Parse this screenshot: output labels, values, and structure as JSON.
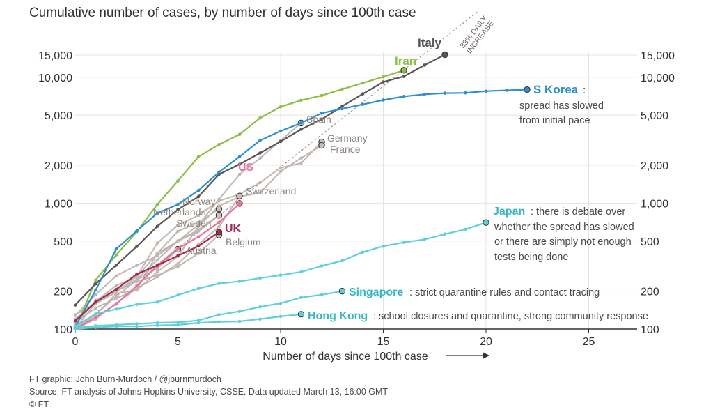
{
  "title": "Cumulative number of cases, by number of days since 100th case",
  "chart_data": {
    "type": "line",
    "xlabel": "Number of days since 100th case",
    "ylabel": "",
    "xlim": [
      0,
      28
    ],
    "ylim": [
      100,
      17000
    ],
    "yscale": "log",
    "xticks": [
      0,
      5,
      10,
      15,
      20,
      25
    ],
    "yticks": [
      100,
      200,
      500,
      1000,
      2000,
      5000,
      10000,
      15000
    ],
    "ytick_labels": [
      "100",
      "200",
      "500",
      "1,000",
      "2,000",
      "5,000",
      "10,000",
      "15,000"
    ],
    "grid": true,
    "reference_line": {
      "label_line1": "33% DAILY",
      "label_line2": "INCREASE",
      "daily_growth": 0.33,
      "start_value": 100
    },
    "series": [
      {
        "name": "Iran",
        "color": "#8cbf3f",
        "x": [
          0,
          1,
          2,
          3,
          4,
          5,
          6,
          7,
          8,
          9,
          10,
          11,
          12,
          13,
          14,
          15,
          16
        ],
        "y": [
          100,
          245,
          388,
          593,
          978,
          1501,
          2336,
          2922,
          3513,
          4747,
          5823,
          6566,
          7161,
          8042,
          9000,
          10075,
          11364
        ]
      },
      {
        "name": "Italy",
        "color": "#5a5552",
        "x": [
          0,
          1,
          2,
          3,
          4,
          5,
          6,
          7,
          8,
          9,
          10,
          11,
          12,
          13,
          14,
          15,
          16,
          17,
          18
        ],
        "y": [
          155,
          229,
          322,
          453,
          655,
          888,
          1128,
          1694,
          2036,
          2502,
          3089,
          3858,
          4636,
          5883,
          7375,
          9172,
          10149,
          12462,
          15113
        ]
      },
      {
        "name": "S Korea",
        "color": "#2e8ed3",
        "x": [
          0,
          1,
          2,
          3,
          4,
          5,
          6,
          7,
          8,
          9,
          10,
          11,
          12,
          13,
          14,
          15,
          16,
          17,
          18,
          19,
          20,
          21,
          22
        ],
        "y": [
          104,
          204,
          433,
          602,
          833,
          977,
          1261,
          1766,
          2337,
          3150,
          3736,
          4335,
          5186,
          5621,
          6088,
          6593,
          7041,
          7314,
          7478,
          7513,
          7755,
          7869,
          7979
        ]
      },
      {
        "name": "Spain",
        "color": "#bfb7b2",
        "x": [
          0,
          1,
          2,
          3,
          4,
          5,
          6,
          7,
          8,
          9,
          10,
          11
        ],
        "y": [
          120,
          165,
          222,
          259,
          400,
          500,
          673,
          1073,
          1695,
          2277,
          3146,
          4334
        ]
      },
      {
        "name": "Germany",
        "color": "#bfb7b2",
        "x": [
          0,
          1,
          2,
          3,
          4,
          5,
          6,
          7,
          8,
          9,
          10,
          11,
          12
        ],
        "y": [
          130,
          159,
          196,
          262,
          482,
          670,
          799,
          1040,
          1176,
          1457,
          1908,
          2078,
          3062
        ]
      },
      {
        "name": "France",
        "color": "#bfb7b2",
        "x": [
          0,
          1,
          2,
          3,
          4,
          5,
          6,
          7,
          8,
          9,
          10,
          11,
          12
        ],
        "y": [
          100,
          130,
          191,
          204,
          285,
          377,
          653,
          949,
          1126,
          1209,
          1784,
          2281,
          2876
        ]
      },
      {
        "name": "US",
        "color": "#f2709c",
        "x": [
          0,
          1,
          2,
          3,
          4,
          5,
          6,
          7,
          8
        ],
        "y": [
          100,
          124,
          158,
          221,
          319,
          435,
          541,
          704,
          994
        ]
      },
      {
        "name": "Switzerland",
        "color": "#bfb7b2",
        "x": [
          0,
          1,
          2,
          3,
          4,
          5,
          6,
          7,
          8
        ],
        "y": [
          100,
          120,
          160,
          210,
          260,
          330,
          470,
          650,
          1139
        ]
      },
      {
        "name": "Norway",
        "color": "#bfb7b2",
        "x": [
          0,
          1,
          2,
          3,
          4,
          5,
          6,
          7
        ],
        "y": [
          113,
          147,
          176,
          205,
          400,
          598,
          702,
          900
        ]
      },
      {
        "name": "Netherlands",
        "color": "#bfb7b2",
        "x": [
          0,
          1,
          2,
          3,
          4,
          5,
          6,
          7
        ],
        "y": [
          128,
          188,
          265,
          321,
          382,
          503,
          614,
          804
        ]
      },
      {
        "name": "Sweden",
        "color": "#bfb7b2",
        "x": [
          0,
          1,
          2,
          3,
          4,
          5,
          6,
          7
        ],
        "y": [
          101,
          161,
          203,
          248,
          355,
          500,
          599,
          800
        ]
      },
      {
        "name": "UK",
        "color": "#a8284d",
        "x": [
          0,
          1,
          2,
          3,
          4,
          5,
          6,
          7
        ],
        "y": [
          116,
          164,
          207,
          273,
          321,
          382,
          456,
          590
        ]
      },
      {
        "name": "Belgium",
        "color": "#bfb7b2",
        "x": [
          0,
          1,
          2,
          3,
          4,
          5,
          6,
          7
        ],
        "y": [
          109,
          169,
          200,
          239,
          267,
          314,
          399,
          559
        ]
      },
      {
        "name": "Austria",
        "color": "#bfb7b2",
        "x": [
          0,
          1,
          2,
          3,
          4,
          5
        ],
        "y": [
          104,
          131,
          182,
          246,
          302,
          430
        ]
      },
      {
        "name": "Japan",
        "color": "#5cd1dc",
        "x": [
          0,
          1,
          2,
          3,
          4,
          5,
          6,
          7,
          8,
          9,
          10,
          11,
          12,
          13,
          14,
          15,
          16,
          17,
          18,
          19,
          20
        ],
        "y": [
          105,
          132,
          144,
          157,
          164,
          186,
          210,
          230,
          239,
          254,
          268,
          284,
          317,
          349,
          408,
          455,
          488,
          514,
          568,
          620,
          702
        ]
      },
      {
        "name": "Singapore",
        "color": "#5cd1dc",
        "x": [
          0,
          1,
          2,
          3,
          4,
          5,
          6,
          7,
          8,
          9,
          10,
          11,
          12,
          13
        ],
        "y": [
          102,
          106,
          108,
          110,
          112,
          113,
          117,
          130,
          138,
          150,
          160,
          178,
          187,
          200
        ]
      },
      {
        "name": "Hong Kong",
        "color": "#5cd1dc",
        "x": [
          0,
          1,
          2,
          3,
          4,
          5,
          6,
          7,
          8,
          9,
          10,
          11
        ],
        "y": [
          100,
          103,
          105,
          105,
          107,
          108,
          112,
          114,
          115,
          120,
          126,
          131
        ]
      }
    ]
  },
  "labels": {
    "italy": "Italy",
    "iran": "Iran",
    "skorea_name": "S Korea",
    "skorea_colon": ":",
    "skorea_note1": "spread has slowed",
    "skorea_note2": "from initial pace",
    "spain": "Spain",
    "germany": "Germany",
    "france": "France",
    "us": "US",
    "switzerland": "Switzerland",
    "norway": "Norway",
    "netherlands": "Netherlands",
    "sweden": "Sweden",
    "uk": "UK",
    "belgium": "Belgium",
    "austria": "Austria",
    "japan_name": "Japan",
    "japan_note1": ": there is debate over",
    "japan_note2": "whether the spread has slowed",
    "japan_note3": "or there are simply not enough",
    "japan_note4": "tests being done",
    "singapore_name": "Singapore",
    "singapore_note": ": strict quarantine rules and contact tracing",
    "hongkong_name": "Hong Kong",
    "hongkong_note": ": school closures and quarantine, strong community response"
  },
  "footer": {
    "line1": "FT graphic: John Burn-Murdoch / @jburnmurdoch",
    "line2": "Source: FT analysis of Johns Hopkins University, CSSE. Data updated March 13, 16:00 GMT",
    "line3": "© FT"
  },
  "colors": {
    "background": "#ffffff",
    "grid": "#e9e3df",
    "axis": "#33302e",
    "text": "#33302e",
    "label_text": "#4d4845",
    "grey_series": "#bfb7b2",
    "grey_label": "#8f857f"
  }
}
